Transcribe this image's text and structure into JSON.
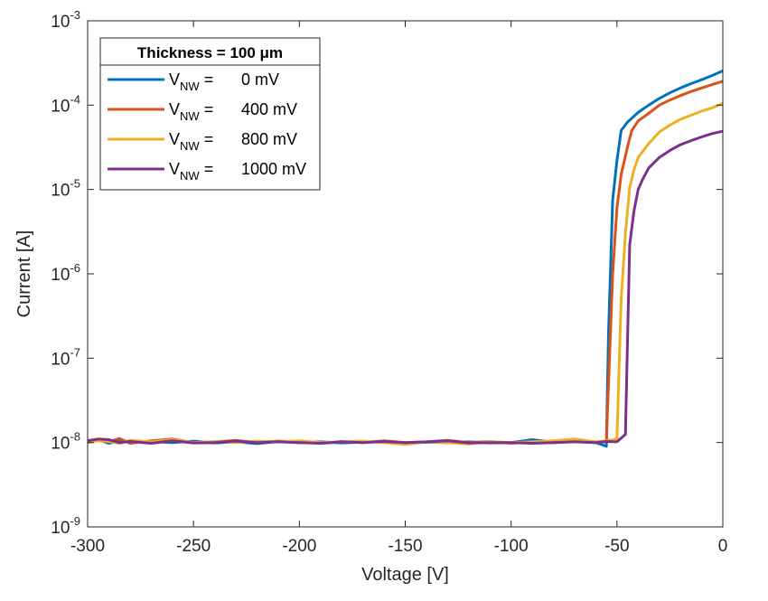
{
  "chart_data": {
    "type": "line",
    "xlabel": "Voltage [V]",
    "ylabel": "Current [A]",
    "xlim": [
      -300,
      0
    ],
    "ylim": [
      1e-09,
      0.001
    ],
    "yscale": "log",
    "grid": false,
    "legend_position": "top-left",
    "x_ticks": [
      -300,
      -250,
      -200,
      -150,
      -100,
      -50,
      0
    ],
    "x_tick_labels": [
      "-300",
      "-250",
      "-200",
      "-150",
      "-100",
      "-50",
      "0"
    ],
    "y_ticks": [
      1e-09,
      1e-08,
      1e-07,
      1e-06,
      1e-05,
      0.0001,
      0.001
    ],
    "y_tick_labels": [
      {
        "base": "10",
        "exp": "-9"
      },
      {
        "base": "10",
        "exp": "-8"
      },
      {
        "base": "10",
        "exp": "-7"
      },
      {
        "base": "10",
        "exp": "-6"
      },
      {
        "base": "10",
        "exp": "-5"
      },
      {
        "base": "10",
        "exp": "-4"
      },
      {
        "base": "10",
        "exp": "-3"
      }
    ],
    "legend_title": "Thickness = 100 μm",
    "series": [
      {
        "name": "V_NW = 0 mV",
        "label_main": "V",
        "label_sub": "NW",
        "label_eq": " = ",
        "label_value": "0 mV",
        "color": "#0072BD",
        "x": [
          -300,
          -295,
          -290,
          -285,
          -280,
          -270,
          -260,
          -250,
          -240,
          -230,
          -220,
          -210,
          -200,
          -190,
          -180,
          -170,
          -160,
          -150,
          -140,
          -130,
          -120,
          -110,
          -100,
          -90,
          -80,
          -70,
          -60,
          -55,
          -54,
          -52,
          -50,
          -48,
          -45,
          -40,
          -35,
          -30,
          -25,
          -20,
          -15,
          -10,
          -5,
          0
        ],
        "y": [
          1.02e-08,
          1.08e-08,
          9.8e-09,
          1.05e-08,
          1e-08,
          1.03e-08,
          1e-08,
          1.04e-08,
          9.9e-09,
          1.02e-08,
          9.7e-09,
          1.03e-08,
          1e-08,
          1.02e-08,
          9.9e-09,
          1.01e-08,
          1.03e-08,
          9.7e-09,
          1.01e-08,
          1e-08,
          1.02e-08,
          9.9e-09,
          1e-08,
          1.08e-08,
          1.01e-08,
          1.03e-08,
          1e-08,
          9e-09,
          2e-07,
          7.5e-06,
          2.2e-05,
          5e-05,
          6.3e-05,
          8.2e-05,
          0.0001,
          0.00012,
          0.00014,
          0.00016,
          0.00018,
          0.0002,
          0.000225,
          0.000255
        ]
      },
      {
        "name": "V_NW = 400 mV",
        "label_main": "V",
        "label_sub": "NW",
        "label_eq": " = ",
        "label_value": "400 mV",
        "color": "#D95319",
        "x": [
          -300,
          -295,
          -290,
          -285,
          -280,
          -270,
          -260,
          -250,
          -240,
          -230,
          -220,
          -210,
          -200,
          -190,
          -180,
          -170,
          -160,
          -150,
          -140,
          -130,
          -120,
          -110,
          -100,
          -90,
          -80,
          -70,
          -60,
          -55,
          -52,
          -50,
          -48,
          -45,
          -43,
          -40,
          -35,
          -30,
          -25,
          -20,
          -15,
          -10,
          -5,
          0
        ],
        "y": [
          1.05e-08,
          1.1e-08,
          1.02e-08,
          1.12e-08,
          9.8e-09,
          1.05e-08,
          1.1e-08,
          1e-08,
          1.02e-08,
          1.06e-08,
          1e-08,
          1.04e-08,
          1.02e-08,
          9.8e-09,
          1.03e-08,
          1e-08,
          1.05e-08,
          1e-08,
          1.02e-08,
          1.06e-08,
          1e-08,
          1.03e-08,
          9.8e-09,
          1.02e-08,
          1e-08,
          1.03e-08,
          1e-08,
          1.02e-08,
          1e-06,
          6e-06,
          1.5e-05,
          3.2e-05,
          5e-05,
          6.5e-05,
          8e-05,
          0.0001,
          0.000115,
          0.00013,
          0.000145,
          0.00016,
          0.000175,
          0.000192
        ]
      },
      {
        "name": "V_NW = 800 mV",
        "label_main": "V",
        "label_sub": "NW",
        "label_eq": " = ",
        "label_value": "800 mV",
        "color": "#EDB120",
        "x": [
          -300,
          -295,
          -290,
          -285,
          -280,
          -270,
          -260,
          -250,
          -240,
          -230,
          -220,
          -210,
          -200,
          -190,
          -180,
          -170,
          -160,
          -150,
          -140,
          -130,
          -120,
          -110,
          -100,
          -90,
          -80,
          -70,
          -60,
          -55,
          -50,
          -48,
          -46,
          -44,
          -42,
          -40,
          -35,
          -30,
          -25,
          -20,
          -15,
          -10,
          -5,
          0
        ],
        "y": [
          1e-08,
          1.05e-08,
          1.03e-08,
          9.8e-09,
          1.06e-08,
          1.02e-08,
          1.08e-08,
          1e-08,
          1.03e-08,
          1e-08,
          1.04e-08,
          1.02e-08,
          1.05e-08,
          1e-08,
          1.02e-08,
          1.04e-08,
          1e-08,
          9.5e-09,
          1.02e-08,
          1e-08,
          9.6e-09,
          1.03e-08,
          1e-08,
          1.02e-08,
          1.05e-08,
          1.1e-08,
          1.02e-08,
          1.05e-08,
          1.1e-08,
          5e-07,
          3e-06,
          1.05e-05,
          1.7e-05,
          2.4e-05,
          3.5e-05,
          4.8e-05,
          5.8e-05,
          6.8e-05,
          7.6e-05,
          8.5e-05,
          9.3e-05,
          0.000105
        ]
      },
      {
        "name": "V_NW = 1000 mV",
        "label_main": "V",
        "label_sub": "NW",
        "label_eq": " = ",
        "label_value": "1000 mV",
        "color": "#7E2F8E",
        "x": [
          -300,
          -295,
          -290,
          -285,
          -280,
          -270,
          -260,
          -250,
          -240,
          -230,
          -220,
          -210,
          -200,
          -190,
          -180,
          -170,
          -160,
          -150,
          -140,
          -130,
          -120,
          -110,
          -100,
          -90,
          -80,
          -70,
          -60,
          -55,
          -50,
          -46,
          -44,
          -42,
          -40,
          -38,
          -35,
          -30,
          -25,
          -20,
          -15,
          -10,
          -5,
          0
        ],
        "y": [
          1.05e-08,
          1.1e-08,
          1.08e-08,
          1e-08,
          1.03e-08,
          9.8e-09,
          1.05e-08,
          9.9e-09,
          1e-08,
          1.04e-08,
          1e-08,
          1.02e-08,
          1e-08,
          9.8e-09,
          1.02e-08,
          1e-08,
          1.03e-08,
          1e-08,
          1.02e-08,
          1.05e-08,
          9.9e-09,
          1e-08,
          1e-08,
          9.8e-09,
          1e-08,
          1.02e-08,
          1e-08,
          1.03e-08,
          1.02e-08,
          1.25e-08,
          2.2e-06,
          5.5e-06,
          1e-05,
          1.3e-05,
          1.8e-05,
          2.4e-05,
          2.9e-05,
          3.4e-05,
          3.8e-05,
          4.2e-05,
          4.6e-05,
          4.9e-05
        ]
      }
    ]
  }
}
